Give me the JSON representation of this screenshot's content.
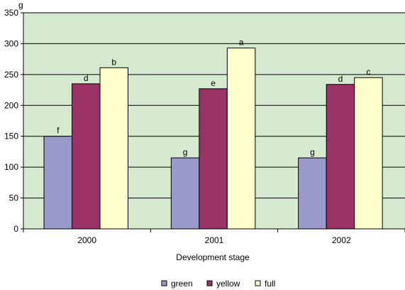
{
  "chart_data": {
    "type": "bar",
    "title": "",
    "xlabel": "Development stage",
    "ylabel": "g",
    "ylim": [
      0,
      350
    ],
    "yticks": [
      0,
      50,
      100,
      150,
      200,
      250,
      300,
      350
    ],
    "grid": true,
    "legend_position": "bottom",
    "categories": [
      "2000",
      "2001",
      "2002"
    ],
    "series": [
      {
        "name": "green",
        "color": "#9999cc",
        "values": [
          150,
          115,
          115
        ],
        "labels": [
          "f",
          "g",
          "g"
        ]
      },
      {
        "name": "yellow",
        "color": "#993366",
        "values": [
          235,
          227,
          234
        ],
        "labels": [
          "d",
          "e",
          "d"
        ]
      },
      {
        "name": "full",
        "color": "#ffffcc",
        "values": [
          261,
          293,
          245
        ],
        "labels": [
          "b",
          "a",
          "c"
        ]
      }
    ],
    "plot_background": "#d6ead0"
  }
}
